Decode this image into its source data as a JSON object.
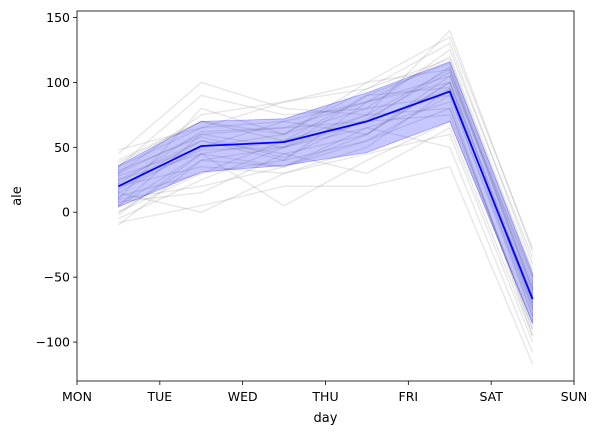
{
  "chart_data": {
    "type": "line",
    "xlabel": "day",
    "ylabel": "ale",
    "x_ticks": [
      "MON",
      "TUE",
      "WED",
      "THU",
      "FRI",
      "SAT",
      "SUN"
    ],
    "y_ticks": [
      -100,
      -50,
      0,
      50,
      100,
      150
    ],
    "xlim": [
      0,
      6
    ],
    "ylim": [
      -130,
      155
    ],
    "grid": false,
    "x": [
      0.5,
      1.5,
      2.5,
      3.5,
      4.5,
      5.5
    ],
    "mean": {
      "color": "#0000ff",
      "values": [
        20,
        51,
        54,
        70,
        93,
        -67
      ]
    },
    "band": {
      "color": "#0000ff",
      "lower": [
        4,
        31,
        36,
        46,
        70,
        -86
      ],
      "upper": [
        36,
        70,
        72,
        92,
        116,
        -47
      ]
    },
    "samples": {
      "color": "#808080",
      "values": [
        [
          5,
          45,
          55,
          70,
          95,
          -70
        ],
        [
          -10,
          40,
          35,
          60,
          100,
          -80
        ],
        [
          30,
          60,
          50,
          75,
          110,
          -60
        ],
        [
          15,
          50,
          60,
          80,
          90,
          -75
        ],
        [
          0,
          30,
          40,
          55,
          80,
          -90
        ],
        [
          35,
          65,
          70,
          85,
          105,
          -50
        ],
        [
          10,
          20,
          35,
          65,
          85,
          -95
        ],
        [
          25,
          55,
          45,
          60,
          100,
          -65
        ],
        [
          -5,
          25,
          50,
          70,
          75,
          -85
        ],
        [
          40,
          70,
          55,
          90,
          115,
          -55
        ],
        [
          20,
          35,
          30,
          50,
          95,
          -70
        ],
        [
          45,
          100,
          80,
          75,
          140,
          -30
        ],
        [
          5,
          60,
          65,
          85,
          120,
          -45
        ],
        [
          -8,
          5,
          20,
          20,
          35,
          -117
        ],
        [
          30,
          75,
          85,
          95,
          130,
          -40
        ],
        [
          15,
          0,
          30,
          45,
          60,
          -100
        ],
        [
          25,
          45,
          5,
          40,
          70,
          -85
        ],
        [
          10,
          80,
          60,
          100,
          110,
          -60
        ],
        [
          35,
          90,
          75,
          80,
          125,
          -35
        ],
        [
          0,
          40,
          50,
          65,
          50,
          -108
        ],
        [
          20,
          55,
          40,
          85,
          100,
          -65
        ],
        [
          48,
          65,
          85,
          100,
          135,
          -28
        ],
        [
          12,
          30,
          55,
          75,
          80,
          -90
        ],
        [
          28,
          50,
          70,
          60,
          105,
          -75
        ],
        [
          8,
          15,
          45,
          30,
          65,
          -95
        ],
        [
          38,
          70,
          60,
          95,
          118,
          -50
        ],
        [
          -2,
          45,
          35,
          55,
          90,
          -80
        ],
        [
          22,
          62,
          65,
          70,
          112,
          -58
        ],
        [
          18,
          48,
          50,
          90,
          96,
          -72
        ],
        [
          32,
          58,
          42,
          72,
          108,
          -62
        ]
      ]
    }
  }
}
